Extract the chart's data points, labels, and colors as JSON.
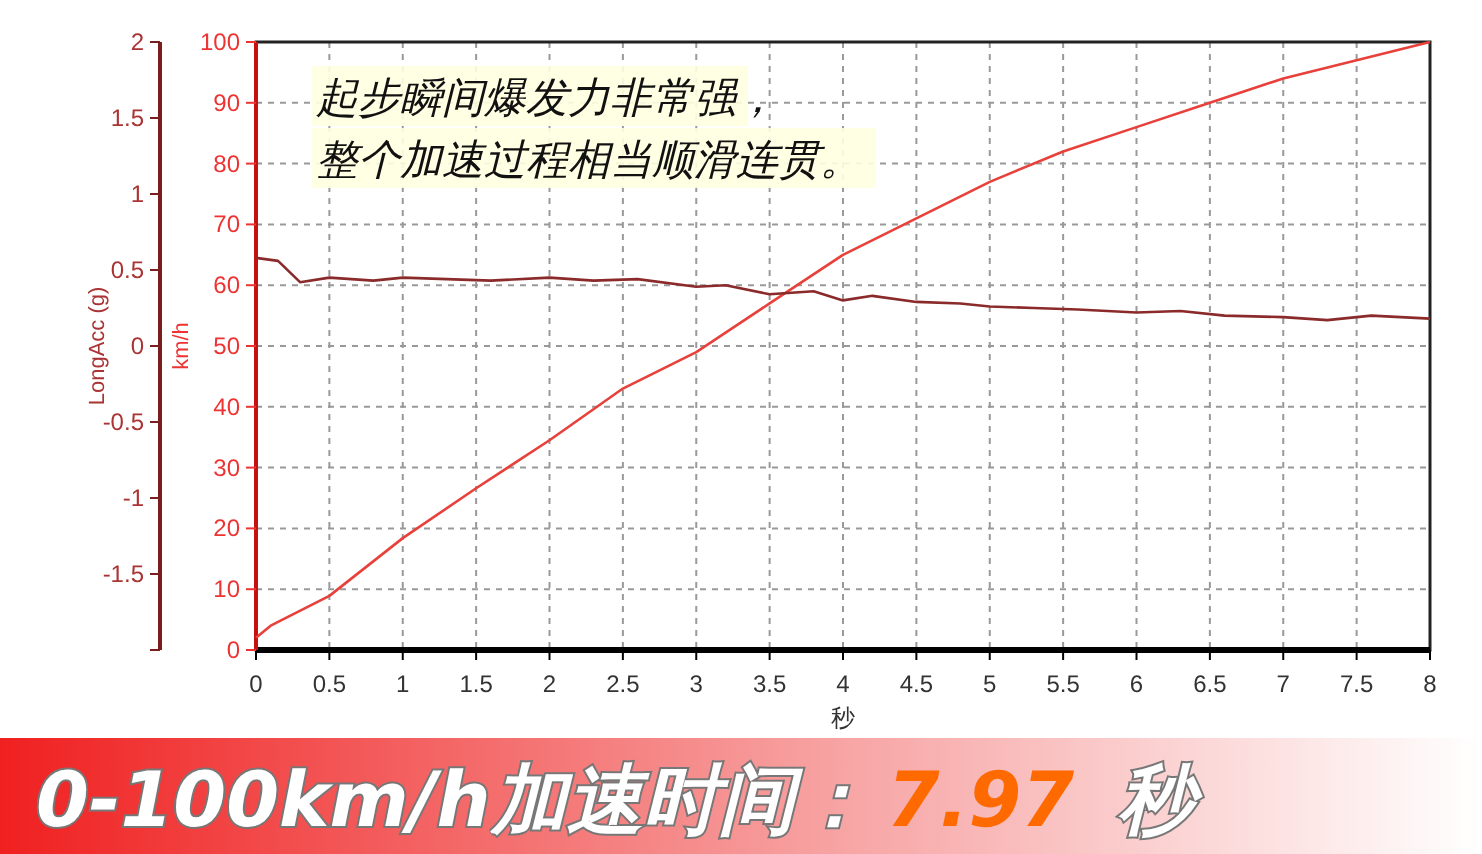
{
  "chart_data": {
    "type": "line",
    "xlabel": "秒",
    "ylabel": "LongAcc (g)",
    "y2label": "km/h",
    "xlim": [
      0,
      8
    ],
    "xticks": [
      0,
      0.5,
      1,
      1.5,
      2,
      2.5,
      3,
      3.5,
      4,
      4.5,
      5,
      5.5,
      6,
      6.5,
      7,
      7.5,
      8
    ],
    "ylim": [
      -2,
      2
    ],
    "yticks": [
      {
        "value": -2,
        "label": null
      },
      -1.5,
      -1,
      -0.5,
      0,
      0.5,
      1,
      1.5,
      2
    ],
    "y2lim": [
      0,
      100
    ],
    "y2ticks": [
      0,
      10,
      20,
      30,
      40,
      50,
      60,
      70,
      80,
      90,
      100
    ],
    "grid": true,
    "line_style": "solid",
    "series": [
      {
        "color": "#e8403a",
        "axis": "y2",
        "x": [
          0,
          0.1,
          0.5,
          1,
          1.5,
          2,
          2.5,
          3,
          3.5,
          4,
          4.5,
          5,
          5.5,
          6,
          6.5,
          7,
          7.5,
          8
        ],
        "values": [
          2,
          4,
          8.9,
          18.4,
          26.6,
          34.5,
          43,
          49,
          57,
          65,
          71,
          77,
          82,
          86,
          90,
          94,
          97,
          100
        ]
      },
      {
        "color": "#8b2a2a",
        "x": [
          0,
          0.15,
          0.3,
          0.5,
          0.8,
          1,
          1.3,
          1.6,
          2,
          2.3,
          2.6,
          3,
          3.2,
          3.5,
          3.8,
          4,
          4.2,
          4.5,
          4.8,
          5,
          5.3,
          5.6,
          6,
          6.3,
          6.6,
          7,
          7.3,
          7.6,
          8
        ],
        "values": [
          0.58,
          0.56,
          0.42,
          0.45,
          0.43,
          0.45,
          0.44,
          0.43,
          0.45,
          0.43,
          0.44,
          0.39,
          0.4,
          0.34,
          0.36,
          0.3,
          0.33,
          0.29,
          0.28,
          0.26,
          0.25,
          0.24,
          0.22,
          0.23,
          0.2,
          0.19,
          0.17,
          0.2,
          0.18
        ]
      }
    ],
    "annotations": [
      "起步瞬间爆发力非常强，",
      "整个加速过程相当顺滑连贯。",
      "0-100km/h加速时间：",
      "7.97",
      "秒"
    ]
  }
}
